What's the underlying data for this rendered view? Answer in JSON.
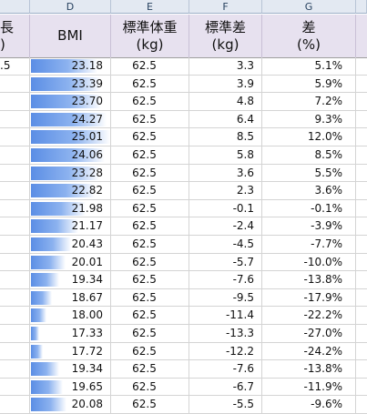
{
  "columns": [
    "D",
    "E",
    "F",
    "G"
  ],
  "headers": {
    "left_line1": "長",
    "left_line2": ")",
    "bmi": "BMI",
    "std_weight_line1": "標準体重",
    "std_weight_line2": "(kg)",
    "std_diff_line1": "標準差",
    "std_diff_line2": "(kg)",
    "diff_line1": "差",
    "diff_line2": "(%)"
  },
  "rows": [
    {
      "left": ".5",
      "bmi": "23.18",
      "bmi_bar": 0.84,
      "std": "62.5",
      "diff": "3.3",
      "pct": "5.1%"
    },
    {
      "left": "",
      "bmi": "23.39",
      "bmi_bar": 0.87,
      "std": "62.5",
      "diff": "3.9",
      "pct": "5.9%"
    },
    {
      "left": "",
      "bmi": "23.70",
      "bmi_bar": 0.89,
      "std": "62.5",
      "diff": "4.8",
      "pct": "7.2%"
    },
    {
      "left": "",
      "bmi": "24.27",
      "bmi_bar": 0.95,
      "std": "62.5",
      "diff": "6.4",
      "pct": "9.3%"
    },
    {
      "left": "",
      "bmi": "25.01",
      "bmi_bar": 1.0,
      "std": "62.5",
      "diff": "8.5",
      "pct": "12.0%"
    },
    {
      "left": "",
      "bmi": "24.06",
      "bmi_bar": 0.93,
      "std": "62.5",
      "diff": "5.8",
      "pct": "8.5%"
    },
    {
      "left": "",
      "bmi": "23.28",
      "bmi_bar": 0.86,
      "std": "62.5",
      "diff": "3.6",
      "pct": "5.5%"
    },
    {
      "left": "",
      "bmi": "22.82",
      "bmi_bar": 0.8,
      "std": "62.5",
      "diff": "2.3",
      "pct": "3.6%"
    },
    {
      "left": "",
      "bmi": "21.98",
      "bmi_bar": 0.69,
      "std": "62.5",
      "diff": "-0.1",
      "pct": "-0.1%"
    },
    {
      "left": "",
      "bmi": "21.17",
      "bmi_bar": 0.6,
      "std": "62.5",
      "diff": "-2.4",
      "pct": "-3.9%"
    },
    {
      "left": "",
      "bmi": "20.43",
      "bmi_bar": 0.5,
      "std": "62.5",
      "diff": "-4.5",
      "pct": "-7.7%"
    },
    {
      "left": "",
      "bmi": "20.01",
      "bmi_bar": 0.44,
      "std": "62.5",
      "diff": "-5.7",
      "pct": "-10.0%"
    },
    {
      "left": "",
      "bmi": "19.34",
      "bmi_bar": 0.36,
      "std": "62.5",
      "diff": "-7.6",
      "pct": "-13.8%"
    },
    {
      "left": "",
      "bmi": "18.67",
      "bmi_bar": 0.27,
      "std": "62.5",
      "diff": "-9.5",
      "pct": "-17.9%"
    },
    {
      "left": "",
      "bmi": "18.00",
      "bmi_bar": 0.19,
      "std": "62.5",
      "diff": "-11.4",
      "pct": "-22.2%"
    },
    {
      "left": "",
      "bmi": "17.33",
      "bmi_bar": 0.1,
      "std": "62.5",
      "diff": "-13.3",
      "pct": "-27.0%"
    },
    {
      "left": "",
      "bmi": "17.72",
      "bmi_bar": 0.15,
      "std": "62.5",
      "diff": "-12.2",
      "pct": "-24.2%"
    },
    {
      "left": "",
      "bmi": "19.34",
      "bmi_bar": 0.36,
      "std": "62.5",
      "diff": "-7.6",
      "pct": "-13.8%"
    },
    {
      "left": "",
      "bmi": "19.65",
      "bmi_bar": 0.4,
      "std": "62.5",
      "diff": "-6.7",
      "pct": "-11.9%"
    },
    {
      "left": "",
      "bmi": "20.08",
      "bmi_bar": 0.45,
      "std": "62.5",
      "diff": "-5.5",
      "pct": "-9.6%"
    }
  ]
}
